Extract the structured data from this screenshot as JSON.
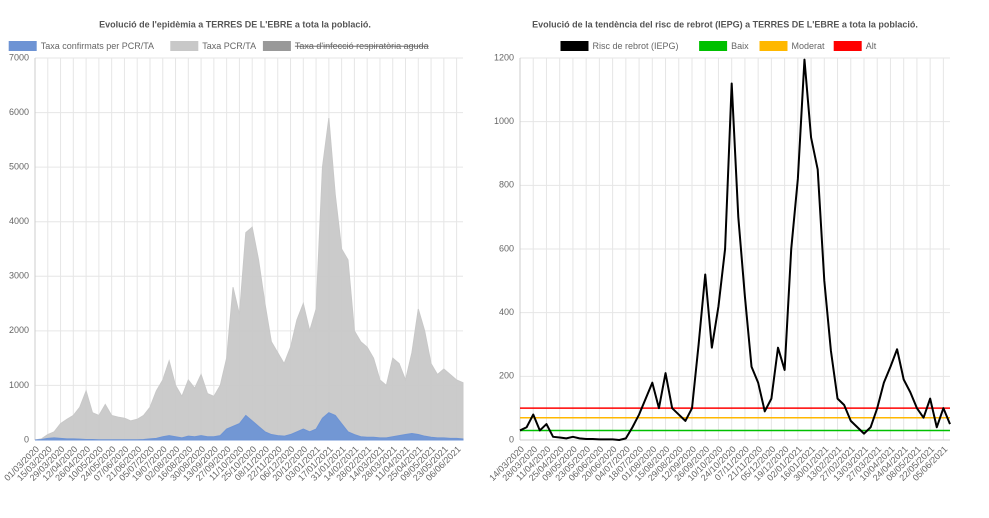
{
  "chart_data": [
    {
      "type": "area",
      "title": "Evolució de l'epidèmia a TERRES DE L'EBRE a tota la població.",
      "categories": [
        "01/03/2020",
        null,
        "15/03/2020",
        null,
        "29/03/2020",
        null,
        "12/04/2020",
        null,
        "26/04/2020",
        null,
        "10/05/2020",
        null,
        "24/05/2020",
        null,
        "07/06/2020",
        null,
        "21/06/2020",
        null,
        "05/07/2020",
        null,
        "19/07/2020",
        null,
        "02/08/2020",
        null,
        "16/08/2020",
        null,
        "30/08/2020",
        null,
        "13/09/2020",
        null,
        "27/09/2020",
        null,
        "11/10/2020",
        null,
        "25/10/2020",
        null,
        "08/11/2020",
        null,
        "22/11/2020",
        null,
        "06/12/2020",
        null,
        "20/12/2020",
        null,
        "03/01/2021",
        null,
        "17/01/2021",
        null,
        "31/01/2021",
        null,
        "14/02/2021",
        null,
        "28/02/2021",
        null,
        "14/03/2021",
        null,
        "28/03/2021",
        null,
        "11/04/2021",
        null,
        "25/04/2021",
        null,
        "09/05/2021",
        null,
        "23/05/2021",
        null,
        "06/06/2021",
        null
      ],
      "series": [
        {
          "name": "Taxa confirmats per PCR/TA",
          "color": "#6d93d4",
          "values": [
            0,
            10,
            30,
            40,
            30,
            20,
            20,
            15,
            10,
            10,
            5,
            5,
            5,
            5,
            5,
            5,
            5,
            10,
            20,
            30,
            60,
            80,
            60,
            40,
            70,
            60,
            80,
            60,
            60,
            80,
            200,
            250,
            300,
            450,
            350,
            250,
            150,
            100,
            80,
            70,
            100,
            150,
            200,
            150,
            200,
            400,
            500,
            450,
            300,
            150,
            100,
            60,
            50,
            50,
            40,
            40,
            60,
            80,
            100,
            120,
            100,
            70,
            50,
            40,
            40,
            30,
            30,
            20
          ]
        },
        {
          "name": "Taxa PCR/TA",
          "color": "#c8c8c8",
          "values": [
            0,
            20,
            100,
            150,
            300,
            380,
            450,
            600,
            900,
            500,
            450,
            650,
            450,
            420,
            400,
            350,
            380,
            450,
            600,
            900,
            1100,
            1450,
            1000,
            800,
            1100,
            950,
            1200,
            850,
            800,
            1000,
            1500,
            2800,
            2300,
            3800,
            3900,
            3300,
            2500,
            1800,
            1600,
            1400,
            1700,
            2200,
            2500,
            2000,
            2400,
            5000,
            5900,
            4500,
            3500,
            3300,
            2000,
            1800,
            1700,
            1500,
            1100,
            1000,
            1500,
            1400,
            1100,
            1600,
            2400,
            2000,
            1400,
            1200,
            1300,
            1200,
            1100,
            1050
          ]
        },
        {
          "name": "Taxa d'infecció respiratòria aguda",
          "color": "#999999",
          "hidden": true
        }
      ],
      "ylim": [
        0,
        7000
      ],
      "yticks": [
        0,
        1000,
        2000,
        3000,
        4000,
        5000,
        6000,
        7000
      ],
      "grid": true
    },
    {
      "type": "line",
      "title": "Evolució de la tendència del risc de rebrot (IEPG) a TERRES DE L'EBRE a tota la població.",
      "categories": [
        "14/03/2020",
        null,
        "28/03/2020",
        null,
        "11/04/2020",
        null,
        "25/04/2020",
        null,
        "09/05/2020",
        null,
        "23/05/2020",
        null,
        "06/06/2020",
        null,
        "20/06/2020",
        null,
        "04/07/2020",
        null,
        "18/07/2020",
        null,
        "01/08/2020",
        null,
        "15/08/2020",
        null,
        "29/08/2020",
        null,
        "12/09/2020",
        null,
        "26/09/2020",
        null,
        "10/10/2020",
        null,
        "24/10/2020",
        null,
        "07/11/2020",
        null,
        "21/11/2020",
        null,
        "05/12/2020",
        null,
        "19/12/2020",
        null,
        "02/01/2021",
        null,
        "16/01/2021",
        null,
        "30/01/2021",
        null,
        "13/02/2021",
        null,
        "27/02/2021",
        null,
        "13/03/2021",
        null,
        "27/03/2021",
        null,
        "10/04/2021",
        null,
        "24/04/2021",
        null,
        "08/05/2021",
        null,
        "22/05/2021",
        null,
        "05/06/2021",
        null
      ],
      "series": [
        {
          "name": "Risc de rebrot (IEPG)",
          "color": "#000000",
          "values": [
            30,
            40,
            80,
            30,
            50,
            10,
            8,
            5,
            10,
            5,
            3,
            3,
            2,
            2,
            2,
            0,
            5,
            40,
            80,
            130,
            180,
            100,
            210,
            100,
            80,
            60,
            100,
            300,
            520,
            290,
            420,
            600,
            1120,
            700,
            450,
            230,
            180,
            90,
            130,
            290,
            220,
            600,
            820,
            1195,
            950,
            850,
            500,
            280,
            130,
            110,
            60,
            40,
            20,
            40,
            100,
            180,
            230,
            285,
            190,
            150,
            100,
            70,
            130,
            40,
            100,
            50
          ]
        }
      ],
      "reference_lines": [
        {
          "name": "Baix",
          "color": "#00c000",
          "value": 30
        },
        {
          "name": "Moderat",
          "color": "#ffb800",
          "value": 70
        },
        {
          "name": "Alt",
          "color": "#ff0000",
          "value": 100
        }
      ],
      "ylim": [
        0,
        1200
      ],
      "yticks": [
        0,
        200,
        400,
        600,
        800,
        1000,
        1200
      ],
      "grid": true
    }
  ]
}
